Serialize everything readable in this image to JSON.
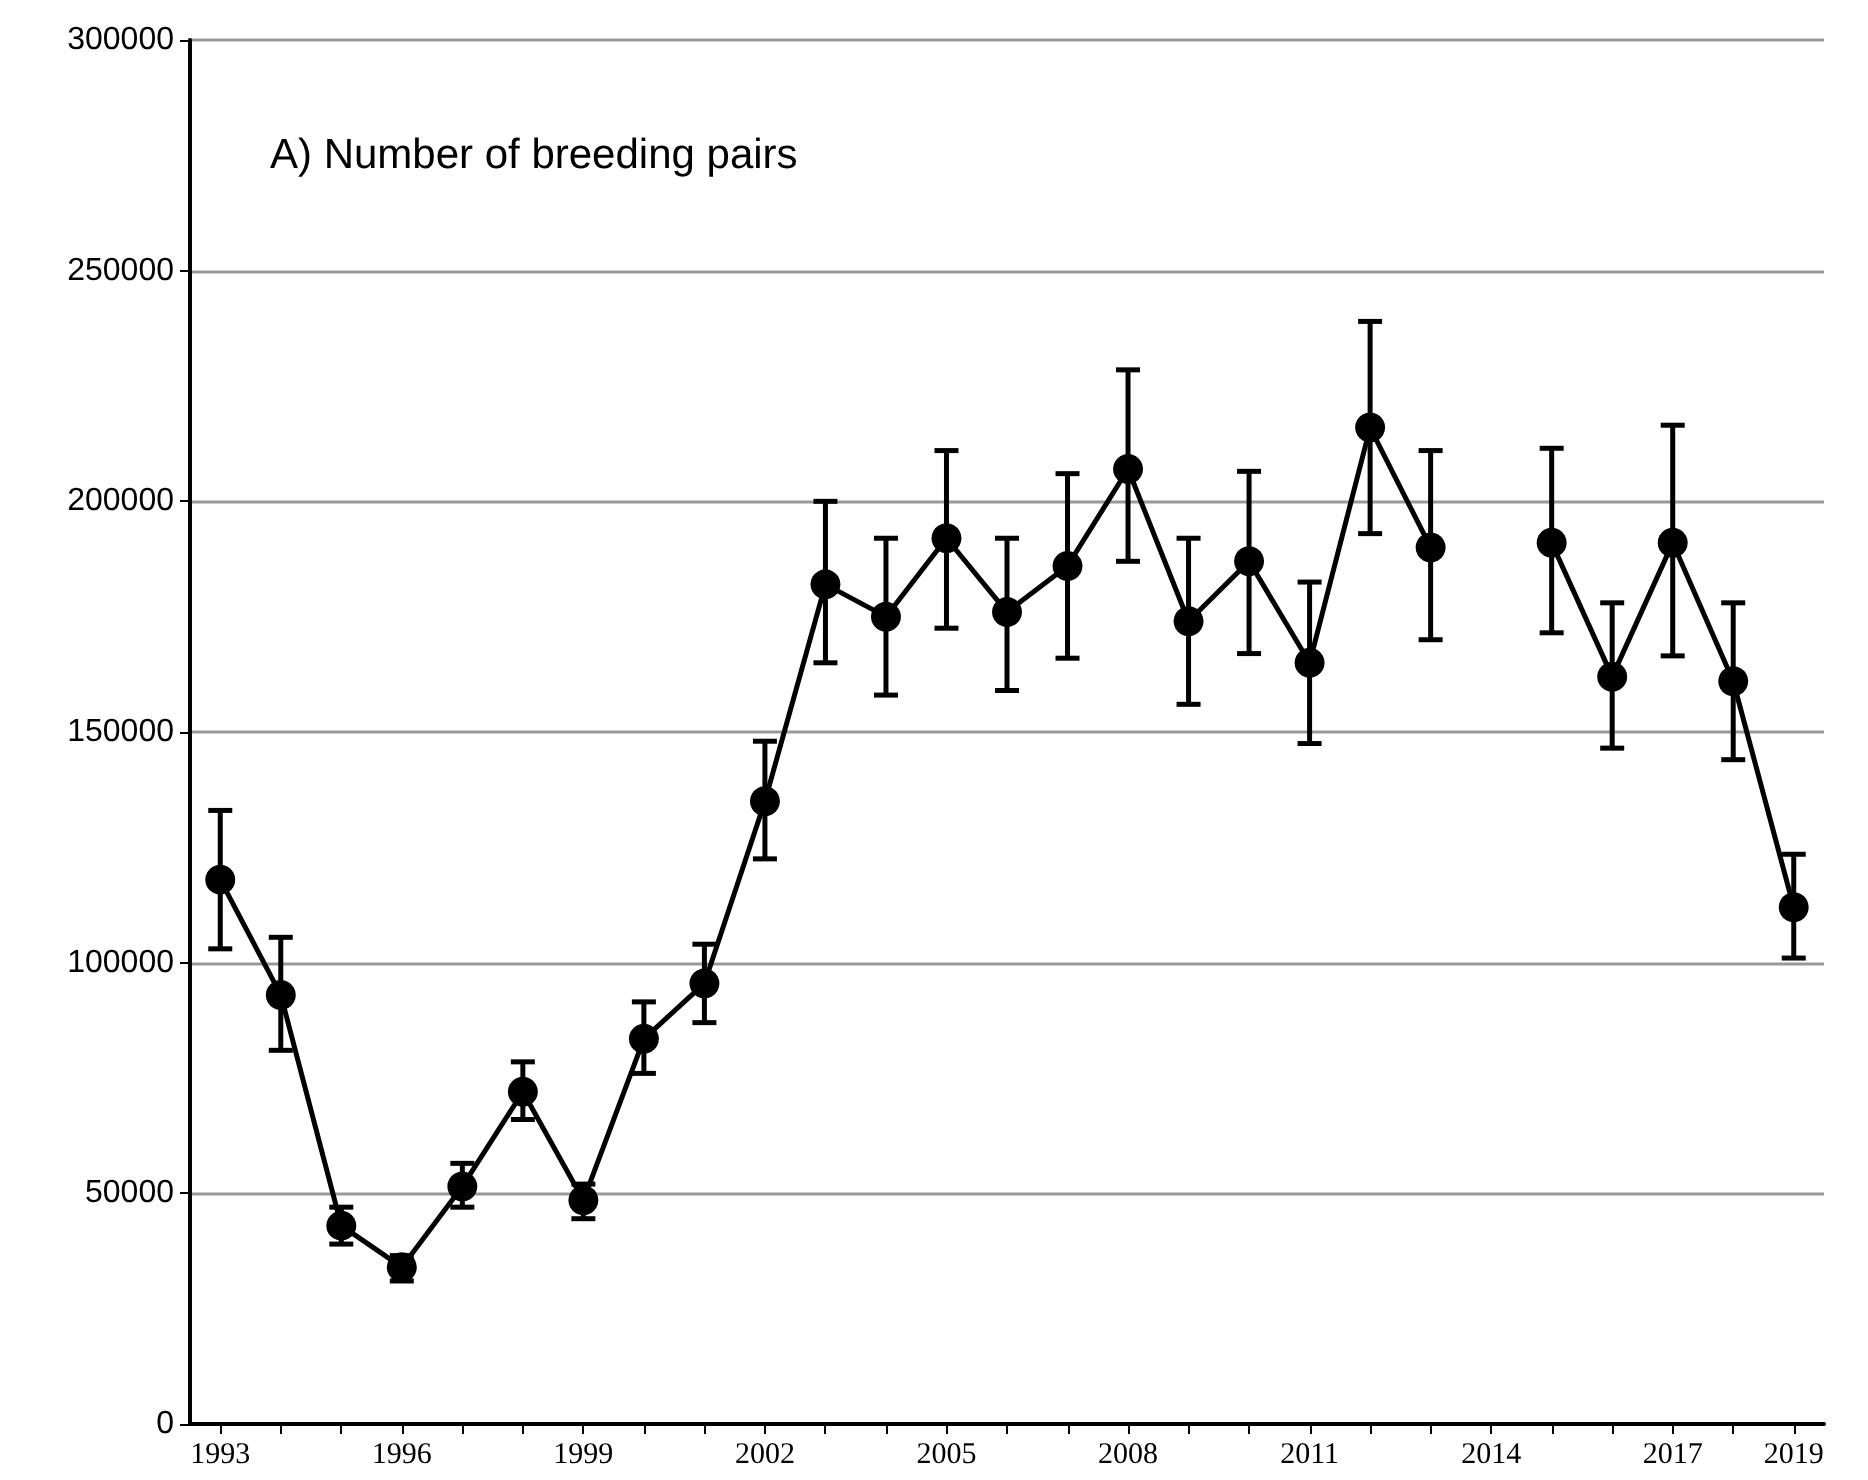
{
  "chart_data": {
    "type": "line",
    "title": "A) Number of breeding pairs",
    "categories": [
      "1993",
      null,
      null,
      "1996",
      null,
      null,
      "1999",
      null,
      null,
      "2002",
      null,
      null,
      "2005",
      null,
      null,
      "2008",
      null,
      null,
      "2011",
      null,
      null,
      "2014",
      null,
      null,
      "2017",
      null,
      "2019"
    ],
    "series": [
      {
        "color": "#000000",
        "values": [
          118000,
          93000,
          43000,
          34000,
          51500,
          72000,
          48500,
          83500,
          95500,
          135000,
          182000,
          175000,
          192000,
          176000,
          186000,
          207000,
          174000,
          187000,
          165000,
          216000,
          190000,
          null,
          191000,
          162000,
          191000,
          161000,
          112000
        ],
        "errors": [
          [
            103000,
            133000
          ],
          [
            81000,
            105500
          ],
          [
            39000,
            47000
          ],
          [
            31000,
            36500
          ],
          [
            47000,
            56500
          ],
          [
            66000,
            78500
          ],
          [
            44500,
            52000
          ],
          [
            76000,
            91500
          ],
          [
            87000,
            104000
          ],
          [
            122500,
            148000
          ],
          [
            165000,
            200000
          ],
          [
            158000,
            192000
          ],
          [
            172500,
            211000
          ],
          [
            159000,
            192000
          ],
          [
            166000,
            206000
          ],
          [
            187000,
            228500
          ],
          [
            156000,
            192000
          ],
          [
            167000,
            206500
          ],
          [
            147500,
            182500
          ],
          [
            193000,
            239000
          ],
          [
            170000,
            211000
          ],
          null,
          [
            171500,
            211500
          ],
          [
            146500,
            178000
          ],
          [
            166500,
            216500
          ],
          [
            144000,
            178000
          ],
          [
            101000,
            123500
          ]
        ]
      }
    ],
    "ylim": [
      0,
      300000
    ],
    "yticks": [
      0,
      50000,
      100000,
      150000,
      200000,
      250000,
      300000
    ],
    "grid": "y",
    "marker": "circle",
    "line_style": "solid"
  }
}
